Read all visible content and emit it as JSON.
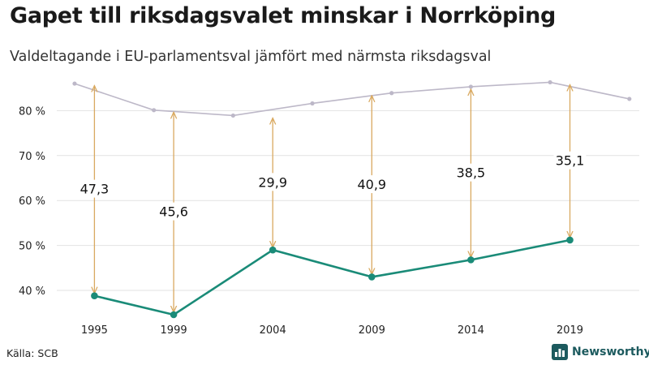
{
  "header": {
    "title": "Gapet till riksdagsvalet minskar i Norrköping",
    "subtitle": "Valdeltagande i EU-parlamentsval jämfört med närmsta riksdagsval"
  },
  "footer": {
    "source": "Källa: SCB",
    "brand": "Newsworthy",
    "brand_icon": "bar-chart-logo-icon"
  },
  "colors": {
    "eu_line": "#1a8b78",
    "riksdag_line": "#bdb8c8",
    "gap_arrow": "#d9a960",
    "grid": "#e2e2e2",
    "brand": "#1c5a5e"
  },
  "chart_data": {
    "type": "line",
    "x_ticks": [
      "1995",
      "1999",
      "2004",
      "2009",
      "2014",
      "2019"
    ],
    "y_ticks": [
      "40 %",
      "50 %",
      "60 %",
      "70 %",
      "80 %"
    ],
    "ylim": [
      35.5,
      88
    ],
    "xlim": [
      1993.1,
      2022.5
    ],
    "grid": true,
    "series": [
      {
        "id": "riksdag",
        "points": [
          [
            1994,
            86.0
          ],
          [
            1998,
            80.1
          ],
          [
            2002,
            78.9
          ],
          [
            2006,
            81.6
          ],
          [
            2010,
            83.9
          ],
          [
            2014,
            85.3
          ],
          [
            2018,
            86.3
          ],
          [
            2022,
            82.6
          ]
        ]
      },
      {
        "id": "eu",
        "points": [
          [
            1995,
            38.8
          ],
          [
            1999,
            34.6
          ],
          [
            2004,
            49.0
          ],
          [
            2009,
            43.0
          ],
          [
            2014,
            46.8
          ],
          [
            2019,
            51.2
          ]
        ]
      }
    ],
    "gaps": [
      {
        "year": 1995,
        "low": 38.8,
        "high": 86.1,
        "label": "47,3"
      },
      {
        "year": 1999,
        "low": 34.6,
        "high": 80.2,
        "label": "45,6"
      },
      {
        "year": 2004,
        "low": 49.0,
        "high": 78.9,
        "label": "29,9"
      },
      {
        "year": 2009,
        "low": 43.0,
        "high": 83.9,
        "label": "40,9"
      },
      {
        "year": 2014,
        "low": 46.8,
        "high": 85.3,
        "label": "38,5"
      },
      {
        "year": 2019,
        "low": 51.2,
        "high": 86.3,
        "label": "35,1"
      }
    ]
  }
}
